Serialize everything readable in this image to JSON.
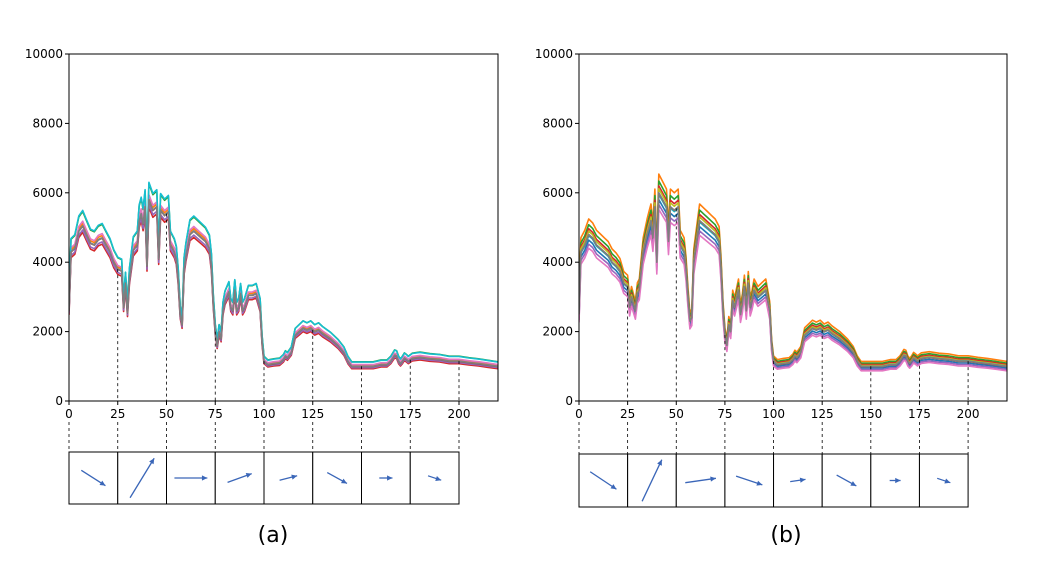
{
  "chart_data": [
    {
      "type": "line",
      "caption": "(a)",
      "xlim": [
        0,
        220
      ],
      "ylim": [
        0,
        10000
      ],
      "xticks": [
        0,
        25,
        50,
        75,
        100,
        125,
        150,
        175,
        200
      ],
      "yticks": [
        0,
        2000,
        4000,
        6000,
        8000,
        10000
      ],
      "grid": false,
      "base_curve": [
        [
          0,
          2600
        ],
        [
          1,
          4300
        ],
        [
          3,
          4400
        ],
        [
          5,
          4900
        ],
        [
          7,
          5050
        ],
        [
          9,
          4800
        ],
        [
          11,
          4550
        ],
        [
          13,
          4500
        ],
        [
          15,
          4650
        ],
        [
          17,
          4700
        ],
        [
          19,
          4500
        ],
        [
          21,
          4300
        ],
        [
          23,
          4000
        ],
        [
          25,
          3800
        ],
        [
          27,
          3750
        ],
        [
          28,
          2700
        ],
        [
          29,
          3400
        ],
        [
          30,
          2550
        ],
        [
          31,
          3500
        ],
        [
          33,
          4350
        ],
        [
          35,
          4500
        ],
        [
          36,
          5200
        ],
        [
          37,
          5400
        ],
        [
          38,
          5100
        ],
        [
          39,
          5600
        ],
        [
          40,
          3900
        ],
        [
          41,
          5800
        ],
        [
          43,
          5500
        ],
        [
          45,
          5600
        ],
        [
          46,
          4100
        ],
        [
          47,
          5500
        ],
        [
          49,
          5350
        ],
        [
          51,
          5450
        ],
        [
          52,
          4500
        ],
        [
          54,
          4300
        ],
        [
          55,
          4100
        ],
        [
          56,
          3500
        ],
        [
          57,
          2500
        ],
        [
          58,
          2200
        ],
        [
          59,
          3800
        ],
        [
          60,
          4200
        ],
        [
          62,
          4800
        ],
        [
          64,
          4900
        ],
        [
          66,
          4800
        ],
        [
          68,
          4700
        ],
        [
          70,
          4600
        ],
        [
          72,
          4400
        ],
        [
          73,
          3900
        ],
        [
          74,
          2800
        ],
        [
          75,
          2000
        ],
        [
          76,
          1600
        ],
        [
          77,
          2000
        ],
        [
          78,
          1800
        ],
        [
          79,
          2600
        ],
        [
          80,
          2900
        ],
        [
          82,
          3150
        ],
        [
          83,
          2700
        ],
        [
          84,
          2600
        ],
        [
          85,
          3200
        ],
        [
          86,
          2600
        ],
        [
          87,
          2700
        ],
        [
          88,
          3100
        ],
        [
          89,
          2600
        ],
        [
          90,
          2700
        ],
        [
          92,
          3050
        ],
        [
          94,
          3050
        ],
        [
          96,
          3100
        ],
        [
          98,
          2700
        ],
        [
          99,
          1700
        ],
        [
          100,
          1150
        ],
        [
          102,
          1050
        ],
        [
          105,
          1080
        ],
        [
          108,
          1100
        ],
        [
          110,
          1200
        ],
        [
          111,
          1300
        ],
        [
          112,
          1250
        ],
        [
          114,
          1400
        ],
        [
          116,
          1900
        ],
        [
          118,
          2000
        ],
        [
          120,
          2100
        ],
        [
          122,
          2050
        ],
        [
          124,
          2100
        ],
        [
          126,
          2000
        ],
        [
          128,
          2050
        ],
        [
          130,
          1950
        ],
        [
          134,
          1800
        ],
        [
          138,
          1600
        ],
        [
          141,
          1400
        ],
        [
          143,
          1150
        ],
        [
          145,
          1000
        ],
        [
          148,
          1000
        ],
        [
          152,
          1000
        ],
        [
          156,
          1000
        ],
        [
          160,
          1050
        ],
        [
          163,
          1050
        ],
        [
          165,
          1150
        ],
        [
          167,
          1320
        ],
        [
          168,
          1300
        ],
        [
          169,
          1150
        ],
        [
          170,
          1080
        ],
        [
          171,
          1150
        ],
        [
          172,
          1240
        ],
        [
          173,
          1200
        ],
        [
          174,
          1150
        ],
        [
          176,
          1230
        ],
        [
          180,
          1260
        ],
        [
          185,
          1220
        ],
        [
          190,
          1200
        ],
        [
          195,
          1150
        ],
        [
          200,
          1150
        ],
        [
          205,
          1110
        ],
        [
          210,
          1080
        ],
        [
          215,
          1040
        ],
        [
          220,
          1000
        ]
      ],
      "series": [
        {
          "color": "#1f77b4",
          "scale": 1.0,
          "offset": 0
        },
        {
          "color": "#ff7f0e",
          "scale": 1.01,
          "offset": 20
        },
        {
          "color": "#2ca02c",
          "scale": 1.07,
          "offset": 60
        },
        {
          "color": "#d62728",
          "scale": 0.97,
          "offset": -40
        },
        {
          "color": "#9467bd",
          "scale": 0.98,
          "offset": -20
        },
        {
          "color": "#8c564b",
          "scale": 1.0,
          "offset": -10
        },
        {
          "color": "#e377c2",
          "scale": 1.02,
          "offset": 30
        },
        {
          "color": "#17becf",
          "scale": 1.08,
          "offset": 40
        },
        {
          "color": "#7f7f7f",
          "scale": 1.0,
          "offset": 0
        }
      ],
      "arrows": [
        [
          0.55,
          0.35
        ],
        [
          0.55,
          -0.9
        ],
        [
          0.75,
          0
        ],
        [
          0.55,
          -0.2
        ],
        [
          0.4,
          -0.1
        ],
        [
          0.45,
          0.25
        ],
        [
          0.3,
          0
        ],
        [
          0.3,
          0.1
        ]
      ]
    },
    {
      "type": "line",
      "caption": "(b)",
      "xlim": [
        0,
        220
      ],
      "ylim": [
        0,
        10000
      ],
      "xticks": [
        0,
        25,
        50,
        75,
        100,
        125,
        150,
        175,
        200
      ],
      "yticks": [
        0,
        2000,
        4000,
        6000,
        8000,
        10000
      ],
      "grid": false,
      "base_curve": [
        [
          0,
          2500
        ],
        [
          1,
          4300
        ],
        [
          3,
          4500
        ],
        [
          5,
          4800
        ],
        [
          7,
          4700
        ],
        [
          9,
          4500
        ],
        [
          11,
          4400
        ],
        [
          13,
          4300
        ],
        [
          15,
          4200
        ],
        [
          17,
          4000
        ],
        [
          19,
          3900
        ],
        [
          21,
          3750
        ],
        [
          23,
          3400
        ],
        [
          25,
          3300
        ],
        [
          26,
          2700
        ],
        [
          27,
          3000
        ],
        [
          29,
          2600
        ],
        [
          30,
          3100
        ],
        [
          31,
          3200
        ],
        [
          33,
          4300
        ],
        [
          35,
          4800
        ],
        [
          36,
          5000
        ],
        [
          37,
          5200
        ],
        [
          38,
          4700
        ],
        [
          39,
          5600
        ],
        [
          40,
          4000
        ],
        [
          41,
          6000
        ],
        [
          43,
          5800
        ],
        [
          45,
          5600
        ],
        [
          46,
          4600
        ],
        [
          47,
          5600
        ],
        [
          49,
          5500
        ],
        [
          51,
          5600
        ],
        [
          52,
          4500
        ],
        [
          54,
          4300
        ],
        [
          55,
          3800
        ],
        [
          56,
          3000
        ],
        [
          57,
          2300
        ],
        [
          58,
          2400
        ],
        [
          59,
          4000
        ],
        [
          60,
          4400
        ],
        [
          62,
          5200
        ],
        [
          64,
          5100
        ],
        [
          66,
          5000
        ],
        [
          68,
          4900
        ],
        [
          70,
          4800
        ],
        [
          72,
          4600
        ],
        [
          73,
          3800
        ],
        [
          74,
          2600
        ],
        [
          75,
          1900
        ],
        [
          76,
          1600
        ],
        [
          77,
          2200
        ],
        [
          78,
          2000
        ],
        [
          79,
          2900
        ],
        [
          80,
          2700
        ],
        [
          82,
          3200
        ],
        [
          83,
          2500
        ],
        [
          84,
          2800
        ],
        [
          85,
          3300
        ],
        [
          86,
          2600
        ],
        [
          87,
          3400
        ],
        [
          88,
          2700
        ],
        [
          89,
          2900
        ],
        [
          90,
          3200
        ],
        [
          92,
          3000
        ],
        [
          94,
          3100
        ],
        [
          96,
          3200
        ],
        [
          98,
          2600
        ],
        [
          99,
          1600
        ],
        [
          100,
          1150
        ],
        [
          102,
          1050
        ],
        [
          105,
          1080
        ],
        [
          108,
          1100
        ],
        [
          110,
          1200
        ],
        [
          111,
          1300
        ],
        [
          112,
          1250
        ],
        [
          114,
          1400
        ],
        [
          116,
          1900
        ],
        [
          118,
          2000
        ],
        [
          120,
          2100
        ],
        [
          122,
          2050
        ],
        [
          124,
          2100
        ],
        [
          126,
          2000
        ],
        [
          128,
          2050
        ],
        [
          130,
          1950
        ],
        [
          134,
          1800
        ],
        [
          138,
          1600
        ],
        [
          141,
          1400
        ],
        [
          143,
          1150
        ],
        [
          145,
          1000
        ],
        [
          148,
          1000
        ],
        [
          152,
          1000
        ],
        [
          156,
          1000
        ],
        [
          160,
          1050
        ],
        [
          163,
          1050
        ],
        [
          165,
          1150
        ],
        [
          167,
          1320
        ],
        [
          168,
          1300
        ],
        [
          169,
          1150
        ],
        [
          170,
          1080
        ],
        [
          171,
          1150
        ],
        [
          172,
          1240
        ],
        [
          173,
          1200
        ],
        [
          174,
          1150
        ],
        [
          176,
          1230
        ],
        [
          180,
          1260
        ],
        [
          185,
          1220
        ],
        [
          190,
          1200
        ],
        [
          195,
          1150
        ],
        [
          200,
          1150
        ],
        [
          205,
          1110
        ],
        [
          210,
          1080
        ],
        [
          215,
          1040
        ],
        [
          220,
          1000
        ]
      ],
      "series": [
        {
          "color": "#ff7f0e",
          "scale": 1.08,
          "offset": 60
        },
        {
          "color": "#2ca02c",
          "scale": 1.05,
          "offset": 40
        },
        {
          "color": "#d62728",
          "scale": 1.03,
          "offset": 20
        },
        {
          "color": "#bcbd22",
          "scale": 1.02,
          "offset": 0
        },
        {
          "color": "#17becf",
          "scale": 0.99,
          "offset": 10
        },
        {
          "color": "#1f77b4",
          "scale": 0.97,
          "offset": -20
        },
        {
          "color": "#9467bd",
          "scale": 0.95,
          "offset": -40
        },
        {
          "color": "#8c564b",
          "scale": 1.0,
          "offset": -10
        },
        {
          "color": "#e377c2",
          "scale": 0.93,
          "offset": -60
        },
        {
          "color": "#7f7f7f",
          "scale": 1.0,
          "offset": 0
        }
      ],
      "arrows": [
        [
          0.6,
          0.4
        ],
        [
          0.45,
          -0.95
        ],
        [
          0.7,
          -0.1
        ],
        [
          0.6,
          0.2
        ],
        [
          0.35,
          -0.05
        ],
        [
          0.45,
          0.25
        ],
        [
          0.25,
          0
        ],
        [
          0.3,
          0.1
        ]
      ]
    }
  ]
}
